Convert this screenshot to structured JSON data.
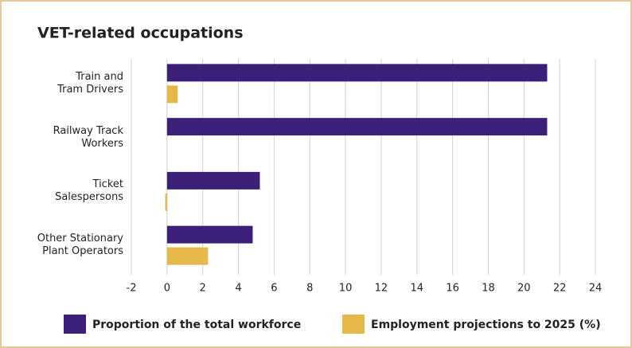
{
  "chart_data": {
    "type": "bar",
    "orientation": "horizontal",
    "title": "VET-related occupations",
    "categories": [
      "Train and\nTram Drivers",
      "Railway Track\nWorkers",
      "Ticket\nSalespersons",
      "Other Stationary\nPlant Operators"
    ],
    "series": [
      {
        "name": "Proportion of the total workforce",
        "color": "#3b1f78",
        "values": [
          21.3,
          21.3,
          5.2,
          4.8
        ]
      },
      {
        "name": "Employment projections to 2025 (%)",
        "color": "#e6b84a",
        "values": [
          0.6,
          0,
          -0.1,
          2.3
        ]
      }
    ],
    "xlim": [
      -2,
      24
    ],
    "xticks": [
      -2,
      0,
      2,
      4,
      6,
      8,
      10,
      12,
      14,
      16,
      18,
      20,
      22,
      24
    ],
    "grid": true,
    "legend": "bottom"
  }
}
